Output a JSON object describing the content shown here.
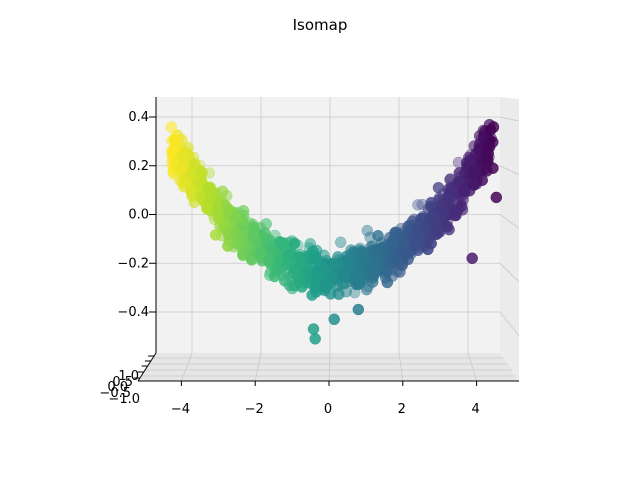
{
  "chart_data": {
    "type": "scatter",
    "projection": "3d",
    "title": "Isomap",
    "xlabel": "",
    "ylabel": "",
    "zlabel": "",
    "x_range": [
      -5.3,
      5.4
    ],
    "z_range": [
      -0.52,
      0.47
    ],
    "x_ticks": [
      -4,
      -2,
      0,
      2,
      4
    ],
    "x_tick_labels": [
      "−4",
      "−2",
      "0",
      "2",
      "4"
    ],
    "z_ticks": [
      -0.4,
      -0.2,
      0.0,
      0.2,
      0.4
    ],
    "z_tick_labels": [
      "−0.4",
      "−0.2",
      "0.0",
      "0.2",
      "0.4"
    ],
    "depth_tick_labels": [
      "1.0",
      "0.5",
      "0.0",
      "−0.5",
      "−1.0"
    ],
    "colormap": "viridis",
    "color_by": "x",
    "grid": true,
    "pane_color": "#f2f2f2",
    "grid_color": "#c8c8c8",
    "curve": "parabola",
    "curve_coefficient": 0.0245,
    "curve_offset": -0.235,
    "n_points": 1000,
    "x_min": -4.6,
    "x_max": 4.75
  }
}
